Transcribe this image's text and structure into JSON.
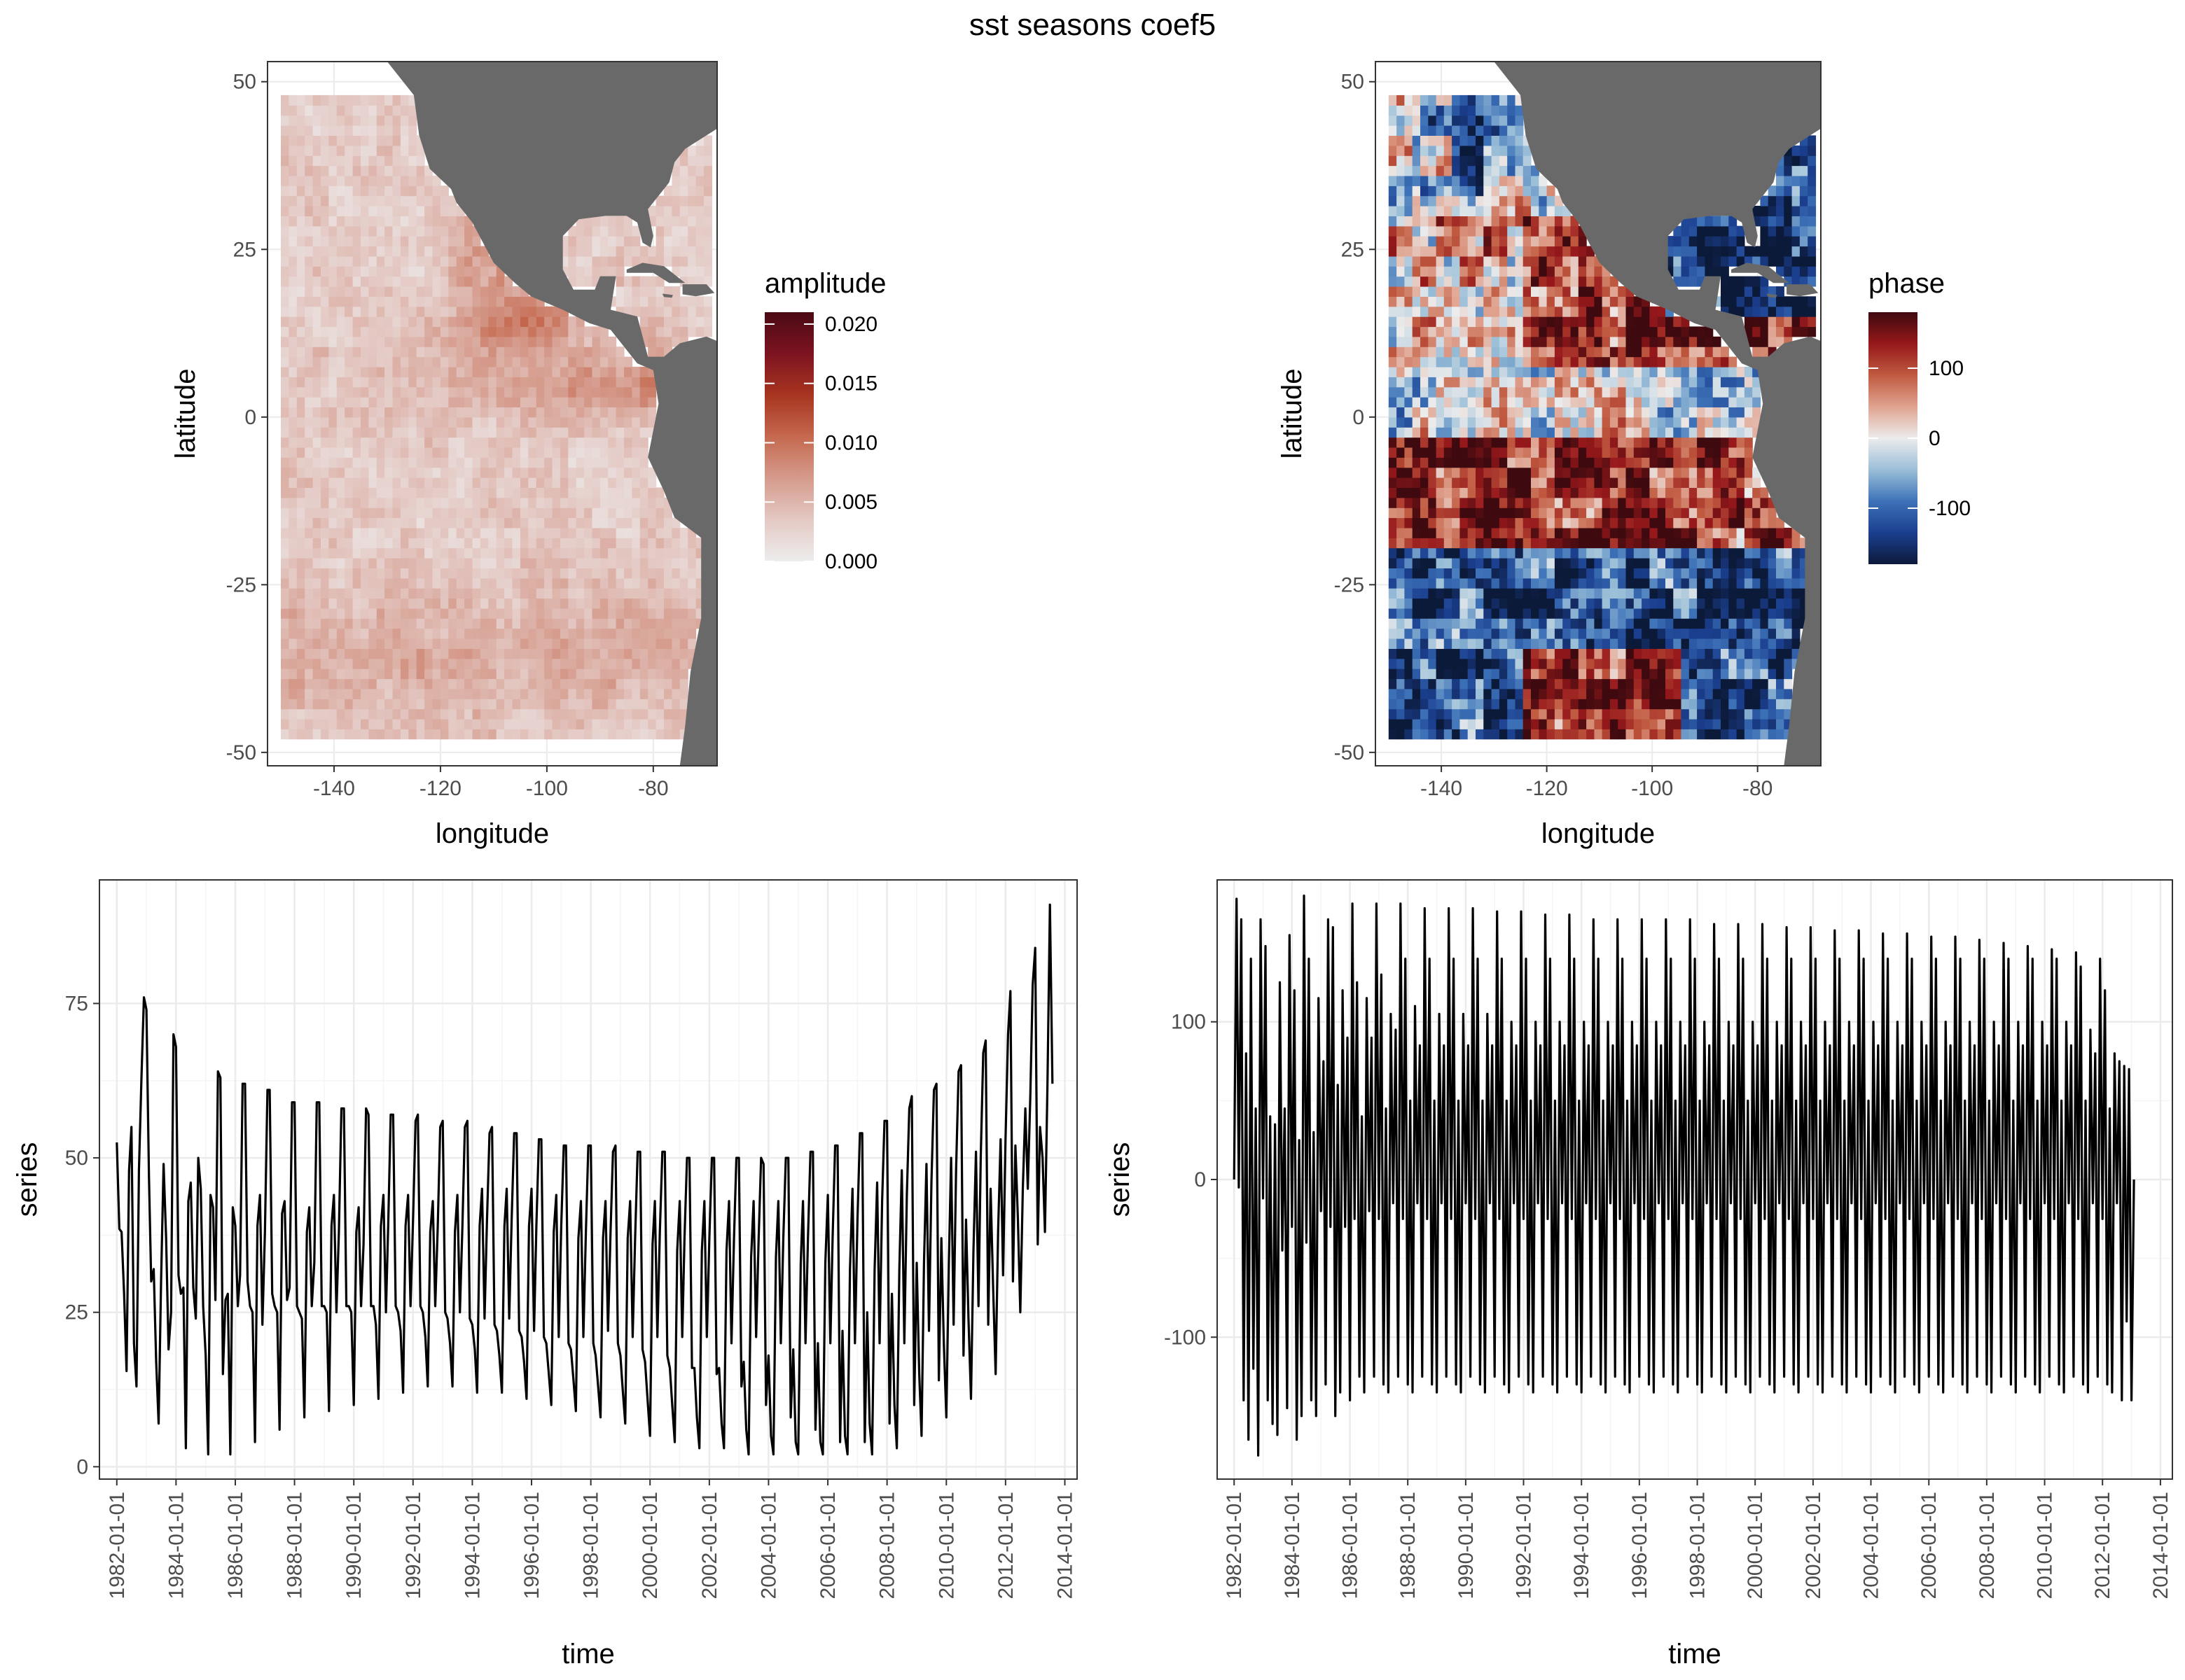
{
  "title": "sst seasons coef5",
  "colors": {
    "land": "#696969",
    "panel_border": "#333333",
    "grid_major": "#ebebeb",
    "grid_minor": "#f5f5f5",
    "line": "#000000"
  },
  "chart_data": [
    {
      "type": "heatmap",
      "name": "amplitude-map",
      "xlabel": "longitude",
      "ylabel": "latitude",
      "xlim": [
        -152.5,
        -68
      ],
      "ylim": [
        -52,
        53
      ],
      "xticks": [
        -140,
        -120,
        -100,
        -80
      ],
      "yticks": [
        -50,
        -25,
        0,
        25,
        50
      ],
      "grid": true,
      "data_extent": {
        "lon": [
          -150,
          -70
        ],
        "lat": [
          -48,
          48
        ]
      },
      "legend": {
        "title": "amplitude",
        "placement": "right",
        "range": [
          0,
          0.021
        ],
        "ticks": [
          0.0,
          0.005,
          0.01,
          0.015,
          0.02
        ],
        "tick_labels": [
          "0.000",
          "0.005",
          "0.010",
          "0.015",
          "0.020"
        ],
        "palette": [
          "#ededed",
          "#e4c9c4",
          "#d59b8c",
          "#c5694f",
          "#a83520",
          "#7d1321",
          "#4a0a14"
        ]
      }
    },
    {
      "type": "heatmap",
      "name": "phase-map",
      "xlabel": "longitude",
      "ylabel": "latitude",
      "xlim": [
        -152.5,
        -68
      ],
      "ylim": [
        -52,
        53
      ],
      "xticks": [
        -140,
        -120,
        -100,
        -80
      ],
      "yticks": [
        -50,
        -25,
        0,
        25,
        50
      ],
      "grid": true,
      "data_extent": {
        "lon": [
          -150,
          -70
        ],
        "lat": [
          -48,
          48
        ]
      },
      "legend": {
        "title": "phase",
        "placement": "right",
        "range": [
          -180,
          180
        ],
        "ticks": [
          -100,
          0,
          100
        ],
        "tick_labels": [
          "-100",
          "0",
          "100"
        ],
        "palette": [
          "#0c1a3a",
          "#1b3f8f",
          "#3d72b8",
          "#9bbfd8",
          "#ececec",
          "#e0a390",
          "#c05a40",
          "#96181b",
          "#3e0a0f"
        ]
      }
    },
    {
      "type": "line",
      "name": "amplitude-series",
      "xlabel": "time",
      "ylabel": "series",
      "xlim": [
        "1981-06-01",
        "2014-06-01"
      ],
      "ylim": [
        -2,
        95
      ],
      "yticks": [
        0,
        25,
        50,
        75
      ],
      "xticks": [
        "1982-01-01",
        "1984-01-01",
        "1986-01-01",
        "1988-01-01",
        "1990-01-01",
        "1992-01-01",
        "1994-01-01",
        "1996-01-01",
        "1998-01-01",
        "2000-01-01",
        "2002-01-01",
        "2004-01-01",
        "2006-01-01",
        "2008-01-01",
        "2010-01-01",
        "2012-01-01",
        "2014-01-01"
      ],
      "grid": true,
      "x_start": "1982-01-01",
      "x_step": "month",
      "values": [
        52.5,
        38.5,
        38,
        28,
        15.5,
        48,
        55,
        20,
        13,
        48,
        63,
        76,
        74,
        47,
        30,
        32,
        17,
        7,
        30,
        49,
        37,
        19,
        25,
        70,
        68,
        31,
        28,
        29,
        3,
        43,
        46,
        29,
        24,
        50,
        45,
        26,
        18,
        2,
        44,
        42,
        27,
        64,
        63,
        15,
        27,
        28,
        2,
        42,
        39,
        26,
        31,
        62,
        62,
        30,
        26,
        25,
        4,
        39,
        44,
        23,
        38,
        61,
        61,
        28,
        26,
        25,
        6,
        41,
        43,
        27,
        29,
        59,
        59,
        26,
        25,
        24,
        8,
        38,
        42,
        26,
        33,
        59,
        59,
        26,
        26,
        25,
        9,
        39,
        44,
        25,
        38,
        58,
        58,
        26,
        26,
        25,
        10,
        38,
        42,
        26,
        36,
        58,
        57,
        26,
        26,
        23,
        11,
        39,
        44,
        25,
        39,
        57,
        57,
        26,
        25,
        22,
        12,
        39,
        44,
        26,
        40,
        56,
        57,
        26,
        25,
        21,
        13,
        38,
        43,
        26,
        39,
        55,
        56,
        25,
        24,
        20,
        13,
        38,
        44,
        25,
        39,
        55,
        56,
        24,
        23,
        19,
        12,
        39,
        45,
        24,
        40,
        54,
        55,
        23,
        22,
        18,
        12,
        39,
        45,
        24,
        40,
        54,
        54,
        22,
        21,
        17,
        11,
        39,
        45,
        22,
        39,
        53,
        53,
        21,
        20,
        15,
        10,
        38,
        44,
        21,
        39,
        52,
        52,
        20,
        19,
        14,
        9,
        37,
        43,
        21,
        38,
        52,
        52,
        20,
        18,
        13,
        8,
        37,
        43,
        22,
        38,
        51,
        52,
        20,
        18,
        12,
        7,
        37,
        43,
        21,
        37,
        51,
        51,
        19,
        17,
        11,
        5,
        36,
        43,
        21,
        38,
        51,
        51,
        18,
        16,
        10,
        4,
        35,
        43,
        21,
        37,
        50,
        50,
        16,
        16,
        8,
        3,
        35,
        43,
        21,
        37,
        50,
        50,
        15,
        16,
        7,
        3,
        35,
        43,
        20,
        37,
        50,
        50,
        13,
        17,
        6,
        2,
        34,
        43,
        21,
        37,
        50,
        49,
        10,
        18,
        5,
        2,
        34,
        43,
        20,
        37,
        50,
        50,
        8,
        19,
        4,
        2,
        33,
        43,
        20,
        37,
        51,
        51,
        6,
        20,
        4,
        2,
        33,
        44,
        20,
        37,
        52,
        52,
        4,
        22,
        5,
        2,
        32,
        45,
        20,
        40,
        54,
        54,
        4,
        25,
        7,
        2,
        32,
        46,
        20,
        43,
        56,
        56,
        7,
        28,
        10,
        3,
        32,
        48,
        20,
        44,
        58,
        60,
        10,
        33,
        15,
        5,
        33,
        49,
        22,
        46,
        61,
        62,
        14,
        37,
        20,
        8,
        33,
        50,
        23,
        48,
        64,
        65,
        18,
        40,
        24,
        11,
        35,
        51,
        26,
        50,
        67,
        69,
        23,
        45,
        29,
        15,
        38,
        53,
        31,
        53,
        70,
        77,
        30,
        52,
        40,
        25,
        45,
        58,
        45,
        60,
        78,
        84,
        36,
        55,
        50,
        38,
        62,
        91,
        62
      ]
    },
    {
      "type": "line",
      "name": "phase-series",
      "xlabel": "time",
      "ylabel": "series",
      "xlim": [
        "1981-06-01",
        "2014-06-01"
      ],
      "ylim": [
        -190,
        190
      ],
      "yticks": [
        -100,
        0,
        100
      ],
      "xticks": [
        "1982-01-01",
        "1984-01-01",
        "1986-01-01",
        "1988-01-01",
        "1990-01-01",
        "1992-01-01",
        "1994-01-01",
        "1996-01-01",
        "1998-01-01",
        "2000-01-01",
        "2002-01-01",
        "2004-01-01",
        "2006-01-01",
        "2008-01-01",
        "2010-01-01",
        "2012-01-01",
        "2014-01-01"
      ],
      "grid": true,
      "x_start": "1982-01-01",
      "x_step": "month",
      "values": [
        0,
        178,
        -5,
        165,
        -140,
        80,
        -165,
        140,
        -120,
        45,
        -175,
        165,
        -12,
        148,
        -140,
        40,
        -155,
        35,
        -162,
        125,
        -45,
        45,
        -145,
        155,
        -30,
        120,
        -165,
        25,
        -150,
        180,
        -40,
        140,
        -140,
        30,
        -150,
        115,
        -20,
        75,
        -130,
        165,
        -30,
        160,
        -150,
        60,
        -135,
        120,
        -30,
        90,
        -140,
        175,
        -25,
        125,
        -125,
        40,
        -135,
        115,
        -20,
        90,
        -125,
        175,
        -25,
        130,
        -130,
        45,
        -135,
        105,
        -15,
        95,
        -125,
        175,
        -25,
        140,
        -130,
        50,
        -135,
        110,
        -15,
        85,
        -125,
        172,
        -25,
        140,
        -130,
        50,
        -135,
        105,
        -15,
        85,
        -125,
        172,
        -25,
        140,
        -130,
        50,
        -135,
        105,
        -15,
        85,
        -125,
        172,
        -25,
        140,
        -130,
        50,
        -135,
        105,
        -15,
        85,
        -125,
        170,
        -25,
        140,
        -130,
        50,
        -135,
        100,
        -15,
        85,
        -125,
        170,
        -25,
        140,
        -130,
        50,
        -135,
        100,
        -15,
        85,
        -125,
        168,
        -25,
        140,
        -130,
        50,
        -135,
        100,
        -15,
        85,
        -125,
        168,
        -25,
        140,
        -130,
        50,
        -135,
        100,
        -15,
        85,
        -125,
        165,
        -25,
        140,
        -130,
        50,
        -135,
        100,
        -15,
        85,
        -125,
        165,
        -25,
        140,
        -130,
        50,
        -135,
        100,
        -15,
        85,
        -125,
        165,
        -25,
        140,
        -130,
        50,
        -135,
        100,
        -15,
        85,
        -125,
        165,
        -25,
        140,
        -130,
        50,
        -135,
        100,
        -15,
        85,
        -125,
        165,
        -25,
        140,
        -130,
        50,
        -135,
        100,
        -15,
        85,
        -125,
        162,
        -25,
        140,
        -130,
        50,
        -135,
        100,
        -15,
        85,
        -125,
        162,
        -25,
        140,
        -130,
        50,
        -135,
        100,
        -15,
        85,
        -125,
        162,
        -25,
        140,
        -130,
        50,
        -135,
        100,
        -15,
        85,
        -125,
        160,
        -25,
        140,
        -130,
        50,
        -135,
        100,
        -15,
        85,
        -125,
        160,
        -25,
        140,
        -130,
        50,
        -135,
        100,
        -15,
        85,
        -125,
        158,
        -25,
        140,
        -130,
        50,
        -135,
        100,
        -15,
        85,
        -125,
        158,
        -25,
        140,
        -130,
        50,
        -135,
        100,
        -15,
        85,
        -125,
        156,
        -25,
        140,
        -130,
        50,
        -135,
        100,
        -15,
        85,
        -125,
        156,
        -25,
        140,
        -130,
        50,
        -135,
        100,
        -15,
        85,
        -125,
        154,
        -25,
        140,
        -130,
        50,
        -135,
        100,
        -15,
        85,
        -125,
        154,
        -25,
        140,
        -130,
        50,
        -135,
        100,
        -15,
        85,
        -125,
        152,
        -25,
        140,
        -130,
        50,
        -135,
        100,
        -15,
        85,
        -125,
        150,
        -25,
        140,
        -130,
        50,
        -135,
        100,
        -15,
        85,
        -125,
        148,
        -25,
        140,
        -130,
        50,
        -135,
        100,
        -15,
        85,
        -125,
        146,
        -25,
        140,
        -130,
        50,
        -135,
        100,
        -15,
        85,
        -125,
        144,
        -25,
        135,
        -130,
        50,
        -135,
        95,
        -15,
        80,
        -125,
        140,
        -25,
        120,
        -130,
        45,
        -135,
        80,
        -15,
        75,
        -140,
        72,
        -90,
        70,
        -140,
        0
      ]
    }
  ]
}
